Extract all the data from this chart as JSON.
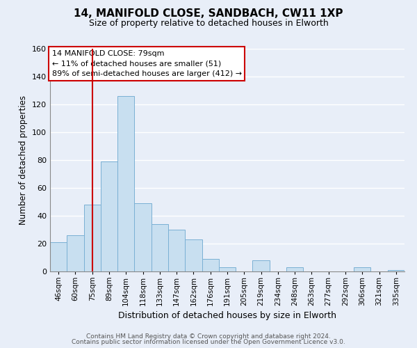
{
  "title": "14, MANIFOLD CLOSE, SANDBACH, CW11 1XP",
  "subtitle": "Size of property relative to detached houses in Elworth",
  "xlabel": "Distribution of detached houses by size in Elworth",
  "ylabel": "Number of detached properties",
  "bin_labels": [
    "46sqm",
    "60sqm",
    "75sqm",
    "89sqm",
    "104sqm",
    "118sqm",
    "133sqm",
    "147sqm",
    "162sqm",
    "176sqm",
    "191sqm",
    "205sqm",
    "219sqm",
    "234sqm",
    "248sqm",
    "263sqm",
    "277sqm",
    "292sqm",
    "306sqm",
    "321sqm",
    "335sqm"
  ],
  "bar_values": [
    21,
    26,
    48,
    79,
    126,
    49,
    34,
    30,
    23,
    9,
    3,
    0,
    8,
    0,
    3,
    0,
    0,
    0,
    3,
    0,
    1
  ],
  "bar_color": "#c8dff0",
  "bar_edge_color": "#7ab0d4",
  "vline_x": 2,
  "vline_color": "#cc0000",
  "ylim": [
    0,
    160
  ],
  "yticks": [
    0,
    20,
    40,
    60,
    80,
    100,
    120,
    140,
    160
  ],
  "annotation_title": "14 MANIFOLD CLOSE: 79sqm",
  "annotation_line1": "← 11% of detached houses are smaller (51)",
  "annotation_line2": "89% of semi-detached houses are larger (412) →",
  "annotation_box_color": "#ffffff",
  "annotation_box_edge": "#cc0000",
  "footer_line1": "Contains HM Land Registry data © Crown copyright and database right 2024.",
  "footer_line2": "Contains public sector information licensed under the Open Government Licence v3.0.",
  "background_color": "#e8eef8",
  "grid_color": "#ffffff"
}
